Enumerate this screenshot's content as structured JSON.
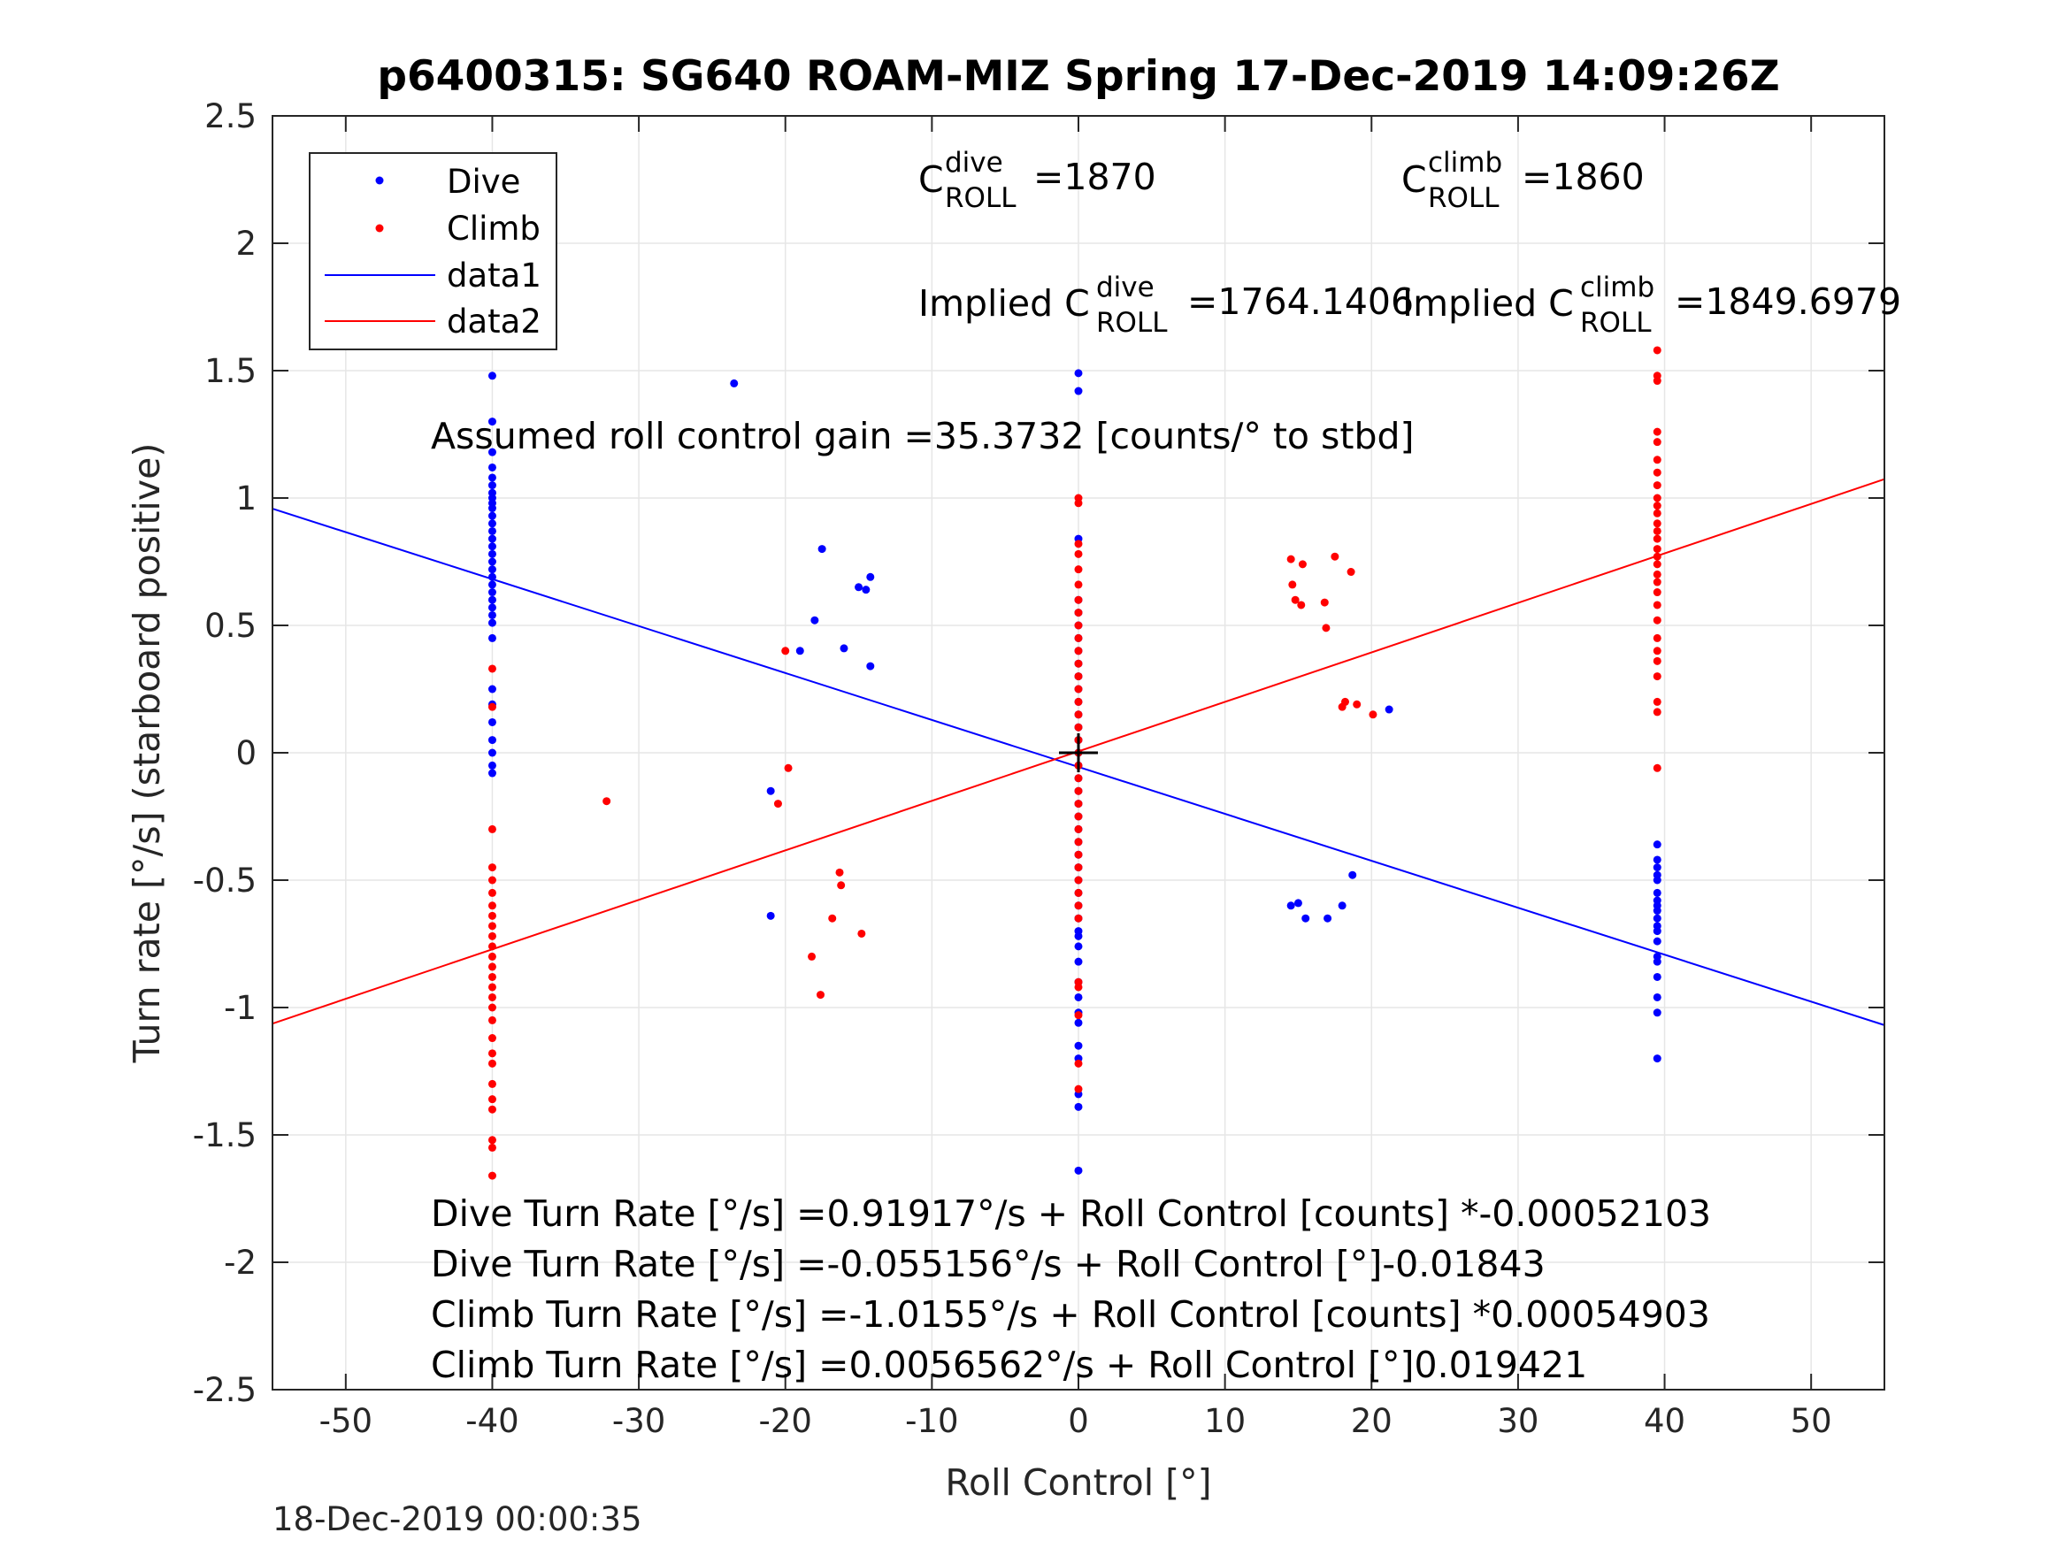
{
  "figure": {
    "footer_timestamp": "18-Dec-2019 00:00:35"
  },
  "chart_data": {
    "type": "scatter",
    "title": "p6400315: SG640 ROAM-MIZ Spring 17-Dec-2019 14:09:26Z",
    "xlabel": "Roll Control [°]",
    "ylabel": "Turn rate [°/s] (starboard positive)",
    "xlim": [
      -55,
      55
    ],
    "ylim": [
      -2.5,
      2.5
    ],
    "xticks": [
      -50,
      -40,
      -30,
      -20,
      -10,
      0,
      10,
      20,
      30,
      40,
      50
    ],
    "yticks": [
      -2.5,
      -2,
      -1.5,
      -1,
      -0.5,
      0,
      0.5,
      1,
      1.5,
      2,
      2.5
    ],
    "xtick_labels": [
      "-50",
      "-40",
      "-30",
      "-20",
      "-10",
      "0",
      "10",
      "20",
      "30",
      "40",
      "50"
    ],
    "ytick_labels": [
      "-2.5",
      "-2",
      "-1.5",
      "-1",
      "-0.5",
      "0",
      "0.5",
      "1",
      "1.5",
      "2",
      "2.5"
    ],
    "grid": true,
    "legend_position": "top-left",
    "legend": [
      "Dive",
      "Climb",
      "data1",
      "data2"
    ],
    "colors": {
      "dive": "#0000ff",
      "climb": "#ff0000",
      "axis": "#262626",
      "grid": "#e6e6e6",
      "marker": "#000000"
    },
    "center_marker": {
      "x": 0,
      "y": 0
    },
    "annotations": {
      "c_dive_base": "C",
      "c_dive_sup": "dive",
      "c_dive_sub": "ROLL",
      "c_dive_value": "=1870",
      "c_climb_base": "C",
      "c_climb_sup": "climb",
      "c_climb_sub": "ROLL",
      "c_climb_value": "=1860",
      "implied_dive_base": "Implied C",
      "implied_dive_sup": "dive",
      "implied_dive_sub": "ROLL",
      "implied_dive_value": "=1764.1406",
      "implied_climb_base": "Implied C",
      "implied_climb_sup": "climb",
      "implied_climb_sub": "ROLL",
      "implied_climb_value": "=1849.6979",
      "gain": "Assumed roll control gain =35.3732 [counts/° to stbd]",
      "eq1": "Dive Turn Rate [°/s] =0.91917°/s + Roll Control [counts] *-0.00052103",
      "eq2": "Dive Turn Rate [°/s] =-0.055156°/s + Roll Control [°]-0.01843",
      "eq3": "Climb Turn Rate [°/s] =-1.0155°/s + Roll Control [counts] *0.00054903",
      "eq4": "Climb Turn Rate [°/s] =0.0056562°/s + Roll Control [°]0.019421"
    },
    "series": [
      {
        "name": "Dive",
        "kind": "points",
        "color": "#0000ff",
        "points": [
          [
            -40,
            1.48
          ],
          [
            -40,
            1.3
          ],
          [
            -40,
            1.18
          ],
          [
            -40,
            1.12
          ],
          [
            -40,
            1.08
          ],
          [
            -40,
            1.05
          ],
          [
            -40,
            1.02
          ],
          [
            -40,
            1.0
          ],
          [
            -40,
            0.98
          ],
          [
            -40,
            0.96
          ],
          [
            -40,
            0.93
          ],
          [
            -40,
            0.9
          ],
          [
            -40,
            0.87
          ],
          [
            -40,
            0.84
          ],
          [
            -40,
            0.81
          ],
          [
            -40,
            0.78
          ],
          [
            -40,
            0.75
          ],
          [
            -40,
            0.72
          ],
          [
            -40,
            0.69
          ],
          [
            -40,
            0.66
          ],
          [
            -40,
            0.63
          ],
          [
            -40,
            0.6
          ],
          [
            -40,
            0.57
          ],
          [
            -40,
            0.54
          ],
          [
            -40,
            0.51
          ],
          [
            -40,
            0.45
          ],
          [
            -40,
            0.25
          ],
          [
            -40,
            0.19
          ],
          [
            -40,
            0.12
          ],
          [
            -40,
            0.05
          ],
          [
            -40,
            0.0
          ],
          [
            -40,
            -0.05
          ],
          [
            -40,
            -0.08
          ],
          [
            -23.5,
            1.45
          ],
          [
            -17.5,
            0.8
          ],
          [
            -18,
            0.52
          ],
          [
            -19,
            0.4
          ],
          [
            -16,
            0.41
          ],
          [
            -15,
            0.65
          ],
          [
            -14.5,
            0.64
          ],
          [
            -14.2,
            0.69
          ],
          [
            -14.2,
            0.34
          ],
          [
            -21,
            -0.15
          ],
          [
            -21,
            -0.64
          ],
          [
            0,
            1.49
          ],
          [
            0,
            1.42
          ],
          [
            0,
            0.84
          ],
          [
            0,
            0.6
          ],
          [
            0,
            0.55
          ],
          [
            0,
            0.5
          ],
          [
            0,
            0.45
          ],
          [
            0,
            0.4
          ],
          [
            0,
            0.35
          ],
          [
            0,
            0.3
          ],
          [
            0,
            0.25
          ],
          [
            0,
            0.2
          ],
          [
            0,
            0.15
          ],
          [
            0,
            0.1
          ],
          [
            0,
            0.05
          ],
          [
            0,
            0.0
          ],
          [
            0,
            -0.05
          ],
          [
            0,
            -0.1
          ],
          [
            0,
            -0.15
          ],
          [
            0,
            -0.2
          ],
          [
            0,
            -0.25
          ],
          [
            0,
            -0.3
          ],
          [
            0,
            -0.35
          ],
          [
            0,
            -0.4
          ],
          [
            0,
            -0.45
          ],
          [
            0,
            -0.5
          ],
          [
            0,
            -0.55
          ],
          [
            0,
            -0.6
          ],
          [
            0,
            -0.65
          ],
          [
            0,
            -0.7
          ],
          [
            0,
            -0.72
          ],
          [
            0,
            -0.76
          ],
          [
            0,
            -0.82
          ],
          [
            0,
            -0.9
          ],
          [
            0,
            -0.96
          ],
          [
            0,
            -1.02
          ],
          [
            0,
            -1.06
          ],
          [
            0,
            -1.15
          ],
          [
            0,
            -1.2
          ],
          [
            0,
            -1.34
          ],
          [
            0,
            -1.39
          ],
          [
            0,
            -1.64
          ],
          [
            14.5,
            -0.6
          ],
          [
            15,
            -0.59
          ],
          [
            15.5,
            -0.65
          ],
          [
            17,
            -0.65
          ],
          [
            18,
            -0.6
          ],
          [
            18.7,
            -0.48
          ],
          [
            21.2,
            0.17
          ],
          [
            39.5,
            -0.36
          ],
          [
            39.5,
            -0.42
          ],
          [
            39.5,
            -0.45
          ],
          [
            39.5,
            -0.48
          ],
          [
            39.5,
            -0.5
          ],
          [
            39.5,
            -0.55
          ],
          [
            39.5,
            -0.58
          ],
          [
            39.5,
            -0.6
          ],
          [
            39.5,
            -0.62
          ],
          [
            39.5,
            -0.65
          ],
          [
            39.5,
            -0.68
          ],
          [
            39.5,
            -0.7
          ],
          [
            39.5,
            -0.74
          ],
          [
            39.5,
            -0.8
          ],
          [
            39.5,
            -0.82
          ],
          [
            39.5,
            -0.88
          ],
          [
            39.5,
            -0.96
          ],
          [
            39.5,
            -1.02
          ],
          [
            39.5,
            -1.2
          ]
        ]
      },
      {
        "name": "Climb",
        "kind": "points",
        "color": "#ff0000",
        "points": [
          [
            -40,
            0.33
          ],
          [
            -40,
            0.18
          ],
          [
            -40,
            -0.3
          ],
          [
            -40,
            -0.45
          ],
          [
            -40,
            -0.5
          ],
          [
            -40,
            -0.55
          ],
          [
            -40,
            -0.6
          ],
          [
            -40,
            -0.64
          ],
          [
            -40,
            -0.68
          ],
          [
            -40,
            -0.72
          ],
          [
            -40,
            -0.76
          ],
          [
            -40,
            -0.8
          ],
          [
            -40,
            -0.84
          ],
          [
            -40,
            -0.88
          ],
          [
            -40,
            -0.92
          ],
          [
            -40,
            -0.96
          ],
          [
            -40,
            -1.0
          ],
          [
            -40,
            -1.05
          ],
          [
            -40,
            -1.12
          ],
          [
            -40,
            -1.18
          ],
          [
            -40,
            -1.22
          ],
          [
            -40,
            -1.3
          ],
          [
            -40,
            -1.36
          ],
          [
            -40,
            -1.4
          ],
          [
            -40,
            -1.52
          ],
          [
            -40,
            -1.55
          ],
          [
            -40,
            -1.66
          ],
          [
            -32.2,
            -0.19
          ],
          [
            -20,
            0.4
          ],
          [
            -19.8,
            -0.06
          ],
          [
            -20.5,
            -0.2
          ],
          [
            -16.3,
            -0.47
          ],
          [
            -16.2,
            -0.52
          ],
          [
            -16.8,
            -0.65
          ],
          [
            -18.2,
            -0.8
          ],
          [
            -17.6,
            -0.95
          ],
          [
            -14.8,
            -0.71
          ],
          [
            0,
            1.0
          ],
          [
            0,
            0.98
          ],
          [
            0,
            0.82
          ],
          [
            0,
            0.78
          ],
          [
            0,
            0.72
          ],
          [
            0,
            0.66
          ],
          [
            0,
            0.6
          ],
          [
            0,
            0.55
          ],
          [
            0,
            0.5
          ],
          [
            0,
            0.45
          ],
          [
            0,
            0.4
          ],
          [
            0,
            0.35
          ],
          [
            0,
            0.3
          ],
          [
            0,
            0.25
          ],
          [
            0,
            0.2
          ],
          [
            0,
            0.15
          ],
          [
            0,
            0.1
          ],
          [
            0,
            0.05
          ],
          [
            0,
            0.0
          ],
          [
            0,
            -0.05
          ],
          [
            0,
            -0.1
          ],
          [
            0,
            -0.15
          ],
          [
            0,
            -0.2
          ],
          [
            0,
            -0.25
          ],
          [
            0,
            -0.3
          ],
          [
            0,
            -0.35
          ],
          [
            0,
            -0.4
          ],
          [
            0,
            -0.45
          ],
          [
            0,
            -0.5
          ],
          [
            0,
            -0.55
          ],
          [
            0,
            -0.6
          ],
          [
            0,
            -0.65
          ],
          [
            0,
            -0.9
          ],
          [
            0,
            -0.92
          ],
          [
            0,
            -1.03
          ],
          [
            0,
            -1.22
          ],
          [
            0,
            -1.32
          ],
          [
            14.5,
            0.76
          ],
          [
            14.8,
            0.6
          ],
          [
            15.2,
            0.58
          ],
          [
            15.3,
            0.74
          ],
          [
            14.6,
            0.66
          ],
          [
            17.5,
            0.77
          ],
          [
            18.6,
            0.71
          ],
          [
            16.8,
            0.59
          ],
          [
            16.9,
            0.49
          ],
          [
            18.2,
            0.2
          ],
          [
            18.0,
            0.18
          ],
          [
            19.0,
            0.19
          ],
          [
            20.1,
            0.15
          ],
          [
            39.5,
            1.58
          ],
          [
            39.5,
            1.48
          ],
          [
            39.5,
            1.46
          ],
          [
            39.5,
            1.26
          ],
          [
            39.5,
            1.22
          ],
          [
            39.5,
            1.15
          ],
          [
            39.5,
            1.1
          ],
          [
            39.5,
            1.05
          ],
          [
            39.5,
            1.0
          ],
          [
            39.5,
            0.97
          ],
          [
            39.5,
            0.94
          ],
          [
            39.5,
            0.9
          ],
          [
            39.5,
            0.87
          ],
          [
            39.5,
            0.84
          ],
          [
            39.5,
            0.8
          ],
          [
            39.5,
            0.77
          ],
          [
            39.5,
            0.74
          ],
          [
            39.5,
            0.7
          ],
          [
            39.5,
            0.67
          ],
          [
            39.5,
            0.63
          ],
          [
            39.5,
            0.58
          ],
          [
            39.5,
            0.52
          ],
          [
            39.5,
            0.45
          ],
          [
            39.5,
            0.4
          ],
          [
            39.5,
            0.36
          ],
          [
            39.5,
            0.3
          ],
          [
            39.5,
            0.2
          ],
          [
            39.5,
            0.16
          ],
          [
            39.5,
            -0.06
          ]
        ]
      },
      {
        "name": "data1",
        "kind": "line",
        "color": "#0000ff",
        "points": [
          [
            -55,
            0.958
          ],
          [
            55,
            -1.069
          ]
        ]
      },
      {
        "name": "data2",
        "kind": "line",
        "color": "#ff0000",
        "points": [
          [
            -55,
            -1.063
          ],
          [
            55,
            1.074
          ]
        ]
      }
    ]
  }
}
